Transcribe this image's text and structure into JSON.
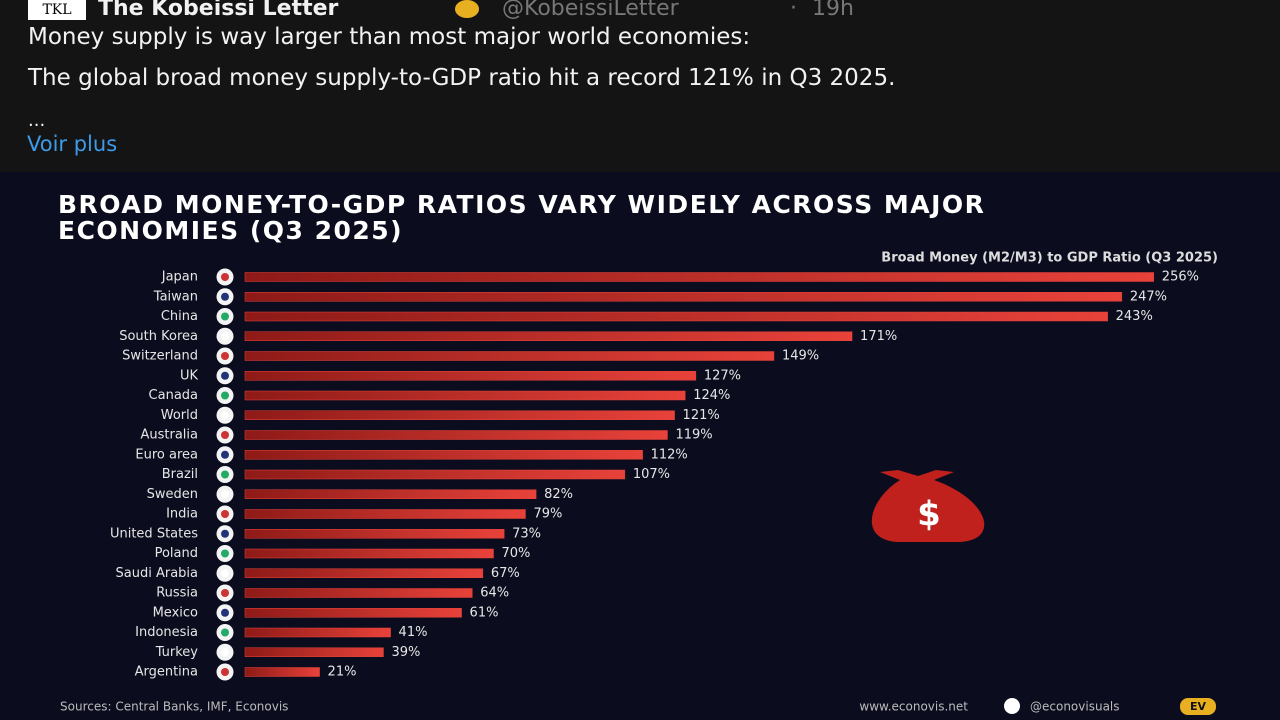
{
  "tweet": {
    "logo": "TKL",
    "author": "The Kobeissi Letter",
    "handle": "@KobeissiLetter",
    "separator": "·",
    "time": "19h",
    "text": [
      "Money supply is way larger than most major world economies:",
      "The global broad money supply-to-GDP ratio hit a record 121% in Q3 2025.",
      "..."
    ],
    "more": "Voir plus"
  },
  "chart_data": {
    "type": "bar",
    "orientation": "horizontal",
    "title": "BROAD MONEY-TO-GDP RATIOS VARY WIDELY ACROSS MAJOR ECONOMIES (Q3 2025)",
    "subtitle": "Broad Money (M2/M3) to GDP Ratio (Q3 2025)",
    "categories": [
      "Japan",
      "Taiwan",
      "China",
      "South Korea",
      "Switzerland",
      "UK",
      "Canada",
      "World",
      "Australia",
      "Euro area",
      "Brazil",
      "Sweden",
      "India",
      "United States",
      "Poland",
      "Saudi Arabia",
      "Russia",
      "Mexico",
      "Indonesia",
      "Turkey",
      "Argentina"
    ],
    "values": [
      256,
      247,
      243,
      171,
      149,
      127,
      124,
      121,
      119,
      112,
      107,
      82,
      79,
      73,
      70,
      67,
      64,
      61,
      41,
      39,
      21
    ],
    "value_labels": [
      "256%",
      "247%",
      "243%",
      "171%",
      "149%",
      "127%",
      "124%",
      "121%",
      "119%",
      "112%",
      "107%",
      "82%",
      "79%",
      "73%",
      "70%",
      "67%",
      "64%",
      "61%",
      "41%",
      "39%",
      "21%"
    ],
    "color": "#e8423a",
    "icon_text": "$",
    "source": "Sources: Central Banks, IMF, Econovis",
    "website": "www.econovis.net",
    "social": "@econovisuals",
    "brand": "EV"
  }
}
